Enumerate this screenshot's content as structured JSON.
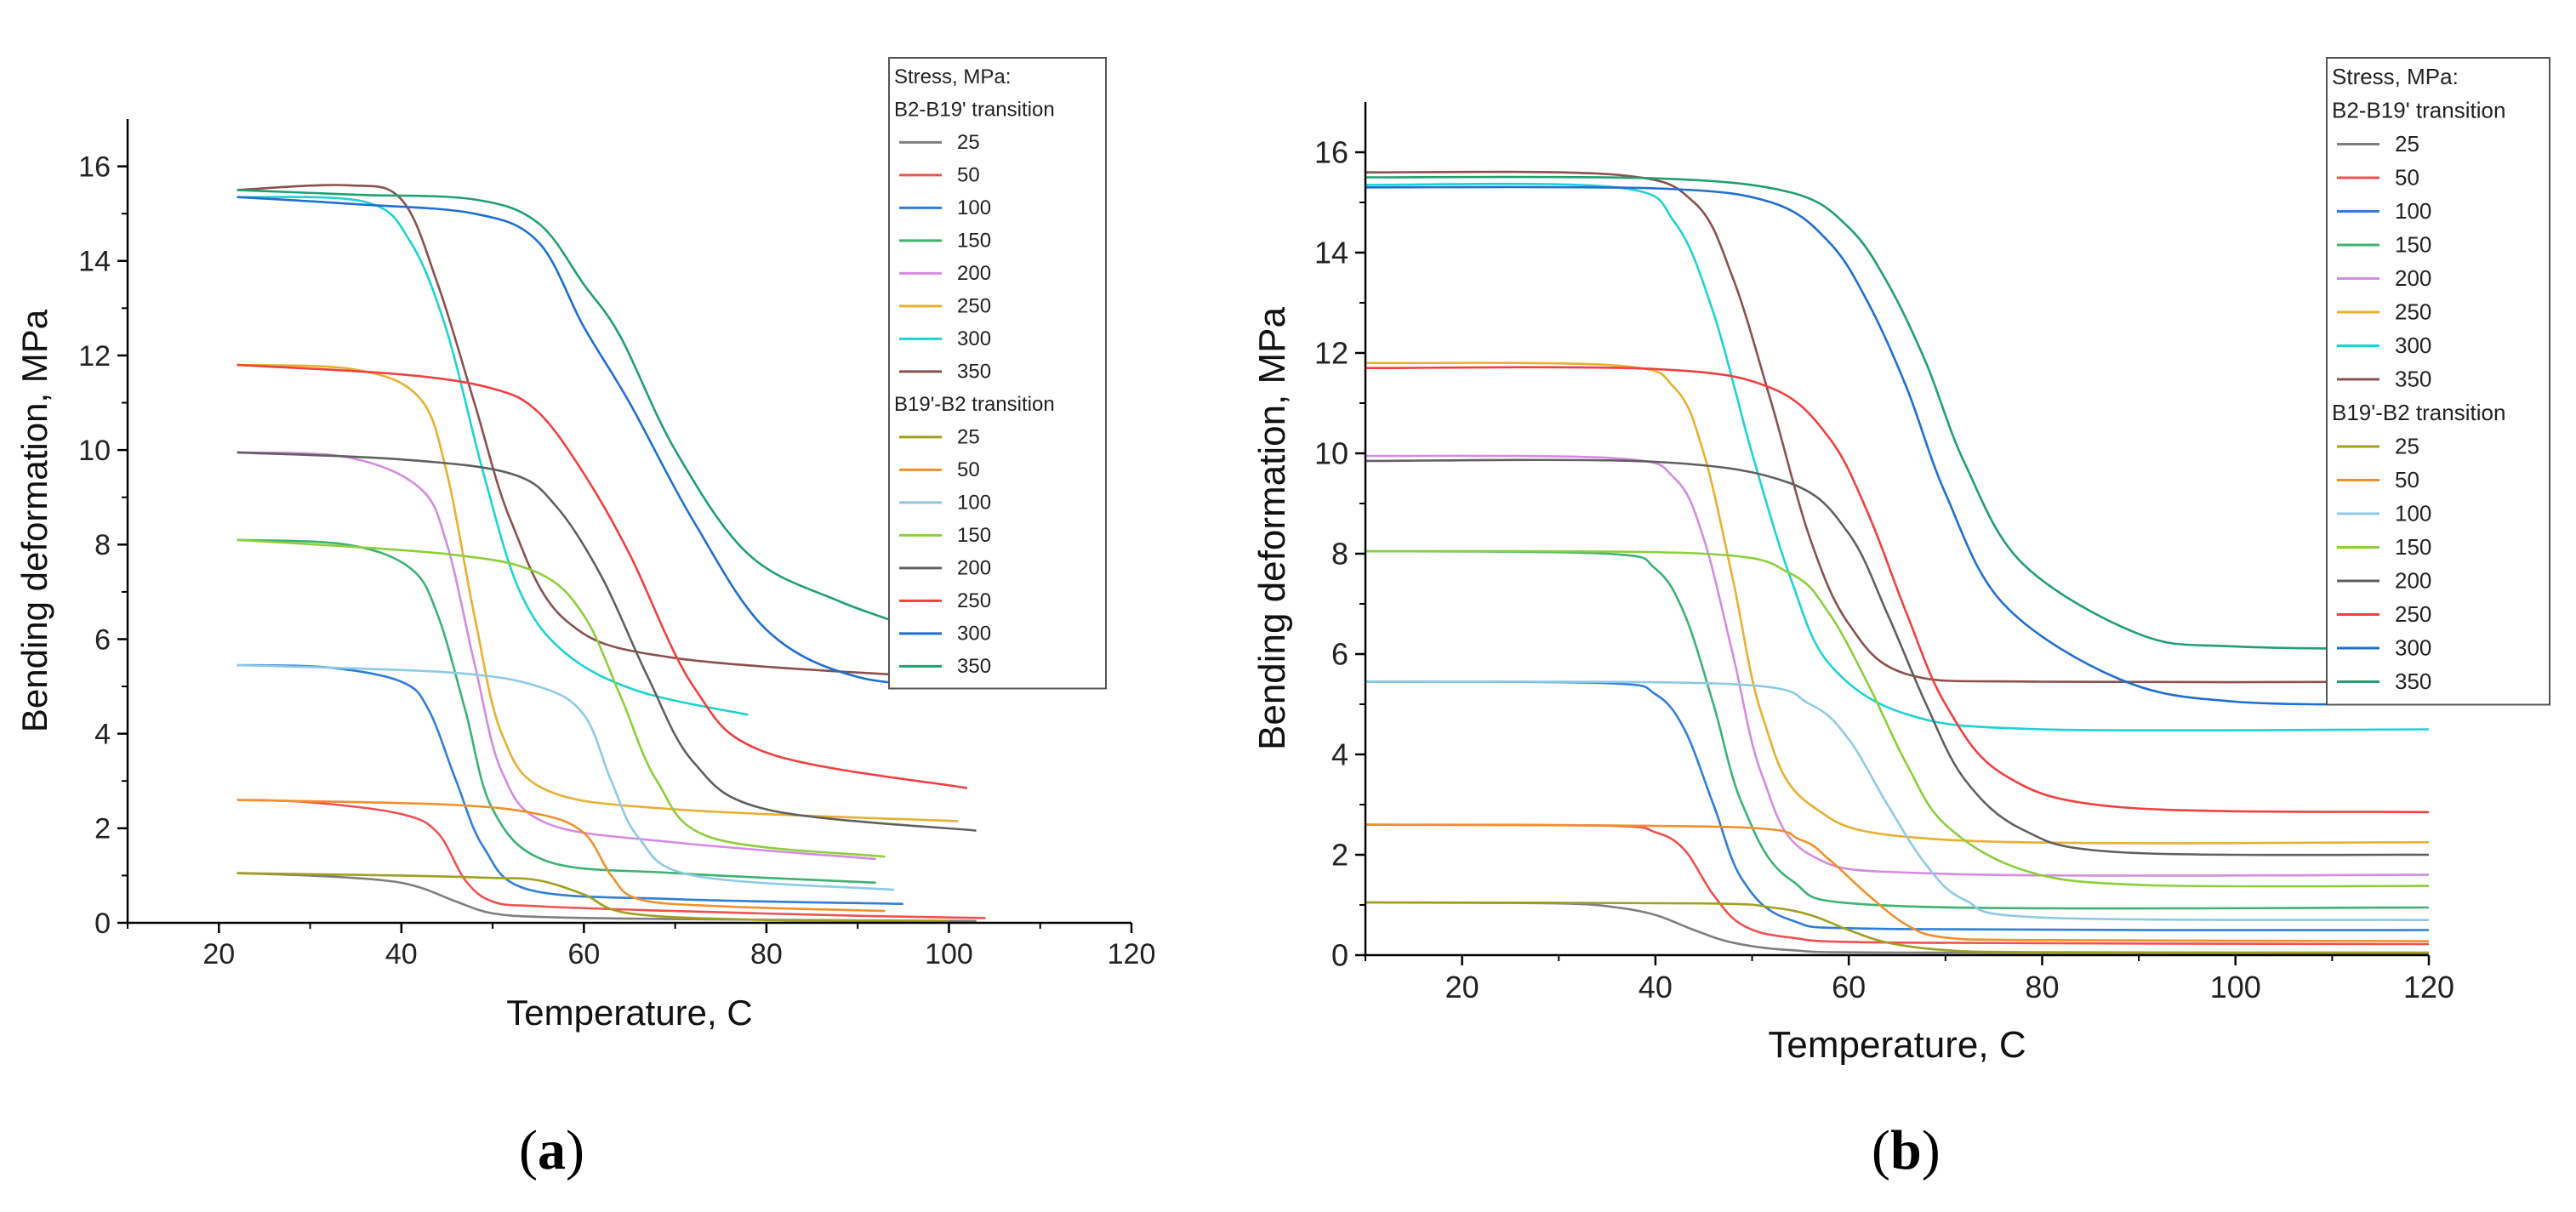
{
  "colors": {
    "axis": "#000000",
    "legend_border": "#555555"
  },
  "panels": {
    "a": {
      "label_open": "(",
      "label_letter": "a",
      "label_close": ")"
    },
    "b": {
      "label_open": "(",
      "label_letter": "b",
      "label_close": ")"
    }
  },
  "chart_data": [
    {
      "id": "a",
      "type": "line",
      "title": "",
      "xlabel": "Temperature, C",
      "ylabel": "Bending deformation, MPa",
      "xlim": [
        10,
        120
      ],
      "ylim": [
        0,
        17
      ],
      "xticks": [
        20,
        40,
        60,
        80,
        100,
        120
      ],
      "yticks": [
        0,
        2,
        4,
        6,
        8,
        10,
        12,
        14,
        16
      ],
      "grid": false,
      "legend_placement": "top-right",
      "legend_title": "Stress, MPa:",
      "groups": [
        {
          "name": "B2-B19' transition",
          "series": [
            {
              "name": "25",
              "color": "#7f7f7f",
              "x": [
                22,
                30,
                38,
                42,
                46,
                50,
                56,
                70,
                90,
                103
              ],
              "y": [
                1.05,
                1.0,
                0.9,
                0.75,
                0.45,
                0.2,
                0.12,
                0.08,
                0.05,
                0.04
              ]
            },
            {
              "name": "50",
              "color": "#f05050",
              "x": [
                22,
                30,
                40,
                44,
                47,
                50,
                55,
                70,
                90,
                104
              ],
              "y": [
                2.6,
                2.55,
                2.3,
                1.9,
                0.9,
                0.45,
                0.35,
                0.25,
                0.15,
                0.1
              ]
            },
            {
              "name": "100",
              "color": "#2f7fd6",
              "x": [
                22,
                32,
                40,
                43,
                46,
                49,
                54,
                70,
                95
              ],
              "y": [
                5.45,
                5.4,
                5.1,
                4.5,
                3.0,
                1.6,
                0.7,
                0.5,
                0.4
              ]
            },
            {
              "name": "150",
              "color": "#3cb371",
              "x": [
                22,
                34,
                41,
                44,
                47,
                50,
                56,
                70,
                92
              ],
              "y": [
                8.1,
                8.0,
                7.5,
                6.5,
                4.5,
                2.4,
                1.3,
                1.05,
                0.85
              ]
            },
            {
              "name": "200",
              "color": "#d48be0",
              "x": [
                22,
                34,
                42,
                45,
                48,
                51,
                56,
                70,
                92
              ],
              "y": [
                9.95,
                9.85,
                9.2,
                8.0,
                5.5,
                3.2,
                2.1,
                1.7,
                1.35
              ]
            },
            {
              "name": "250",
              "color": "#e8b030",
              "x": [
                22,
                35,
                42,
                45,
                48,
                51,
                56,
                70,
                101
              ],
              "y": [
                11.8,
                11.7,
                11.1,
                9.5,
                6.5,
                4.0,
                2.8,
                2.4,
                2.15
              ]
            },
            {
              "name": "300",
              "color": "#1dd3d3",
              "x": [
                22,
                36,
                41,
                45,
                49,
                53,
                58,
                66,
                78
              ],
              "y": [
                15.35,
                15.25,
                14.4,
                12.5,
                9.5,
                7.0,
                5.7,
                4.9,
                4.4
              ]
            },
            {
              "name": "350",
              "color": "#8b5050",
              "x": [
                22,
                34,
                40,
                44,
                48,
                52,
                58,
                70,
                103
              ],
              "y": [
                15.5,
                15.6,
                15.3,
                13.5,
                11.0,
                8.5,
                6.4,
                5.6,
                5.15
              ]
            }
          ]
        },
        {
          "name": "B19'-B2 transition",
          "series": [
            {
              "name": "25",
              "color": "#a0a020",
              "x": [
                22,
                40,
                50,
                55,
                60,
                65,
                80,
                100
              ],
              "y": [
                1.05,
                1.0,
                0.95,
                0.9,
                0.6,
                0.2,
                0.06,
                0.04
              ]
            },
            {
              "name": "50",
              "color": "#f0902a",
              "x": [
                22,
                45,
                55,
                60,
                63,
                66,
                75,
                93
              ],
              "y": [
                2.6,
                2.5,
                2.3,
                1.9,
                1.0,
                0.5,
                0.35,
                0.25
              ]
            },
            {
              "name": "100",
              "color": "#8ecae6",
              "x": [
                22,
                45,
                55,
                60,
                63,
                66,
                72,
                94
              ],
              "y": [
                5.45,
                5.3,
                5.0,
                4.4,
                3.0,
                1.8,
                1.0,
                0.7
              ]
            },
            {
              "name": "150",
              "color": "#8ccf3a",
              "x": [
                22,
                45,
                55,
                60,
                64,
                68,
                74,
                93
              ],
              "y": [
                8.1,
                7.8,
                7.4,
                6.5,
                4.8,
                3.0,
                1.8,
                1.4
              ]
            },
            {
              "name": "200",
              "color": "#606060",
              "x": [
                22,
                40,
                52,
                57,
                62,
                67,
                72,
                80,
                103
              ],
              "y": [
                9.95,
                9.8,
                9.5,
                8.8,
                7.3,
                5.2,
                3.4,
                2.4,
                1.95
              ]
            },
            {
              "name": "250",
              "color": "#f04040",
              "x": [
                22,
                40,
                50,
                55,
                60,
                65,
                72,
                80,
                102
              ],
              "y": [
                11.8,
                11.6,
                11.3,
                10.8,
                9.5,
                7.8,
                5.0,
                3.6,
                2.85
              ]
            },
            {
              "name": "300",
              "color": "#1f6fd0",
              "x": [
                22,
                35,
                48,
                55,
                60,
                65,
                72,
                80,
                90,
                103
              ],
              "y": [
                15.35,
                15.2,
                15.0,
                14.4,
                12.6,
                11.0,
                8.5,
                6.2,
                5.2,
                5.0
              ]
            },
            {
              "name": "350",
              "color": "#20a070",
              "x": [
                22,
                35,
                48,
                55,
                60,
                64,
                70,
                78,
                88,
                100
              ],
              "y": [
                15.5,
                15.4,
                15.3,
                14.8,
                13.5,
                12.4,
                10.0,
                7.8,
                6.8,
                6.0
              ]
            }
          ]
        }
      ]
    },
    {
      "id": "b",
      "type": "line",
      "title": "",
      "xlabel": "Temperature, C",
      "ylabel": "Bending deformation, MPa",
      "xlim": [
        10,
        120
      ],
      "ylim": [
        0,
        17
      ],
      "xticks": [
        20,
        40,
        60,
        80,
        100,
        120
      ],
      "yticks": [
        0,
        2,
        4,
        6,
        8,
        10,
        12,
        14,
        16
      ],
      "grid": false,
      "legend_placement": "top-right",
      "legend_title": "Stress, MPa:",
      "groups": [
        {
          "name": "B2-B19' transition",
          "series": [
            {
              "name": "25",
              "color": "#7f7f7f",
              "x": [
                10,
                30,
                36,
                40,
                44,
                48,
                54,
                65,
                120
              ],
              "y": [
                1.05,
                1.03,
                0.95,
                0.8,
                0.5,
                0.25,
                0.1,
                0.05,
                0.04
              ]
            },
            {
              "name": "50",
              "color": "#f05050",
              "x": [
                10,
                35,
                40,
                43,
                46,
                49,
                54,
                65,
                120
              ],
              "y": [
                2.6,
                2.58,
                2.45,
                2.1,
                1.2,
                0.6,
                0.35,
                0.25,
                0.22
              ]
            },
            {
              "name": "100",
              "color": "#2f7fd6",
              "x": [
                10,
                35,
                40,
                43,
                46,
                49,
                54,
                65,
                120
              ],
              "y": [
                5.45,
                5.42,
                5.2,
                4.5,
                3.0,
                1.5,
                0.7,
                0.52,
                0.5
              ]
            },
            {
              "name": "150",
              "color": "#3cb371",
              "x": [
                10,
                35,
                40,
                43,
                46,
                49,
                54,
                65,
                120
              ],
              "y": [
                8.05,
                8.0,
                7.7,
                6.8,
                5.0,
                3.0,
                1.5,
                0.98,
                0.95
              ]
            },
            {
              "name": "200",
              "color": "#d48be0",
              "x": [
                10,
                36,
                42,
                45,
                48,
                51,
                56,
                70,
                120
              ],
              "y": [
                9.95,
                9.9,
                9.5,
                8.3,
                6.0,
                3.6,
                2.0,
                1.62,
                1.6
              ]
            },
            {
              "name": "250",
              "color": "#e8b030",
              "x": [
                10,
                36,
                42,
                45,
                48,
                51,
                56,
                70,
                120
              ],
              "y": [
                11.8,
                11.75,
                11.3,
                10.0,
                7.5,
                4.8,
                3.0,
                2.3,
                2.25
              ]
            },
            {
              "name": "300",
              "color": "#1dd3d3",
              "x": [
                10,
                36,
                42,
                46,
                50,
                54,
                58,
                66,
                80,
                120
              ],
              "y": [
                15.35,
                15.3,
                14.6,
                12.8,
                10.0,
                7.5,
                5.8,
                4.8,
                4.5,
                4.5
              ]
            },
            {
              "name": "350",
              "color": "#8b5050",
              "x": [
                10,
                36,
                44,
                48,
                52,
                56,
                60,
                66,
                80,
                120
              ],
              "y": [
                15.6,
                15.55,
                15.0,
                13.5,
                11.0,
                8.3,
                6.6,
                5.6,
                5.45,
                5.45
              ]
            }
          ]
        },
        {
          "name": "B19'-B2 transition",
          "series": [
            {
              "name": "25",
              "color": "#a0a020",
              "x": [
                10,
                45,
                52,
                56,
                60,
                64,
                70,
                80,
                120
              ],
              "y": [
                1.05,
                1.03,
                0.95,
                0.8,
                0.5,
                0.25,
                0.1,
                0.06,
                0.05
              ]
            },
            {
              "name": "50",
              "color": "#f0902a",
              "x": [
                10,
                48,
                55,
                58,
                62,
                66,
                70,
                80,
                120
              ],
              "y": [
                2.6,
                2.55,
                2.3,
                1.9,
                1.2,
                0.6,
                0.35,
                0.3,
                0.28
              ]
            },
            {
              "name": "100",
              "color": "#8ecae6",
              "x": [
                10,
                48,
                56,
                60,
                64,
                68,
                72,
                80,
                120
              ],
              "y": [
                5.45,
                5.4,
                5.0,
                4.3,
                3.0,
                1.8,
                1.1,
                0.75,
                0.7
              ]
            },
            {
              "name": "150",
              "color": "#8ccf3a",
              "x": [
                10,
                45,
                54,
                58,
                62,
                66,
                70,
                78,
                90,
                120
              ],
              "y": [
                8.05,
                8.0,
                7.6,
                6.8,
                5.4,
                3.8,
                2.6,
                1.7,
                1.4,
                1.38
              ]
            },
            {
              "name": "200",
              "color": "#606060",
              "x": [
                10,
                40,
                54,
                60,
                64,
                68,
                72,
                78,
                88,
                120
              ],
              "y": [
                9.85,
                9.83,
                9.4,
                8.4,
                6.8,
                5.0,
                3.5,
                2.5,
                2.05,
                2.0
              ]
            },
            {
              "name": "250",
              "color": "#f04040",
              "x": [
                10,
                40,
                52,
                58,
                62,
                66,
                70,
                76,
                88,
                120
              ],
              "y": [
                11.7,
                11.68,
                11.3,
                10.3,
                8.8,
                6.8,
                5.0,
                3.6,
                2.95,
                2.85
              ]
            },
            {
              "name": "300",
              "color": "#1f6fd0",
              "x": [
                10,
                40,
                52,
                58,
                62,
                66,
                70,
                76,
                88,
                100,
                120
              ],
              "y": [
                15.3,
                15.28,
                15.0,
                14.2,
                13.0,
                11.3,
                9.2,
                7.0,
                5.5,
                5.05,
                5.0
              ]
            },
            {
              "name": "350",
              "color": "#20a070",
              "x": [
                10,
                40,
                54,
                60,
                64,
                68,
                72,
                78,
                90,
                100,
                120
              ],
              "y": [
                15.5,
                15.48,
                15.2,
                14.5,
                13.4,
                11.8,
                9.8,
                7.8,
                6.4,
                6.15,
                6.1
              ]
            }
          ]
        }
      ]
    }
  ]
}
